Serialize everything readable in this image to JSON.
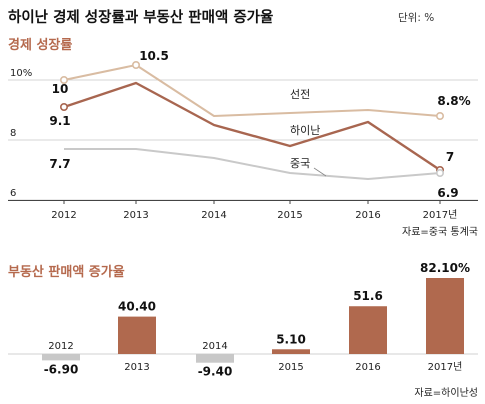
{
  "header": {
    "title": "하이난 경제 성장률과 부동산 판매액 증가율",
    "unit": "단위: %"
  },
  "colors": {
    "accent": "#b5694d",
    "seonjeon": "#d9bca2",
    "hainan": "#a86650",
    "china": "#c9c9c9",
    "positive_bar": "#b0694e",
    "negative_bar": "#c8c8c8"
  },
  "chart_data": [
    {
      "type": "line",
      "title": "경제 성장률",
      "x": [
        "2012",
        "2013",
        "2014",
        "2015",
        "2016",
        "2017년"
      ],
      "ylim": [
        6,
        11
      ],
      "yticks": [
        "6",
        "8",
        "10%"
      ],
      "grid": true,
      "series": [
        {
          "name": "선전",
          "values": [
            10.0,
            10.5,
            8.8,
            8.9,
            9.0,
            8.8
          ]
        },
        {
          "name": "하이난",
          "values": [
            9.1,
            9.9,
            8.5,
            7.8,
            8.6,
            7.0
          ]
        },
        {
          "name": "중국",
          "values": [
            7.7,
            7.7,
            7.4,
            6.9,
            6.7,
            6.9
          ]
        }
      ],
      "data_labels": [
        "10",
        "10.5",
        "9.1",
        "7.7",
        "8.8%",
        "7",
        "6.9"
      ],
      "source": "자료=중국 통계국"
    },
    {
      "type": "bar",
      "title": "부동산 판매액 증가율",
      "categories": [
        "2012",
        "2013",
        "2014",
        "2015",
        "2016",
        "2017년"
      ],
      "values": [
        -6.9,
        40.4,
        -9.4,
        5.1,
        51.6,
        82.1
      ],
      "data_labels": [
        "-6.90",
        "40.40",
        "-9.40",
        "5.10",
        "51.6",
        "82.10%"
      ],
      "source": "자료=하이난성"
    }
  ]
}
